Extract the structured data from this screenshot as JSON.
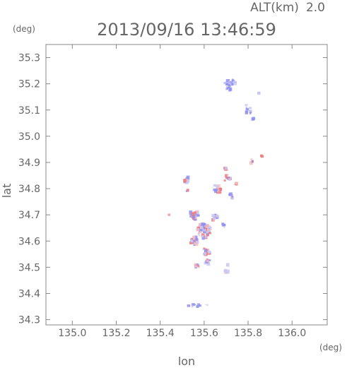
{
  "header": {
    "altitude_label": "ALT(km)",
    "altitude_value": "2.0",
    "timestamp": "2013/09/16 13:46:59"
  },
  "axis_units": {
    "y": "(deg)",
    "x": "(deg)"
  },
  "chart_data": {
    "type": "scatter",
    "title": "2013/09/16 13:46:59",
    "xlabel": "lon",
    "ylabel": "lat",
    "xlim": [
      134.88,
      136.16
    ],
    "ylim": [
      34.28,
      35.35
    ],
    "xticks": [
      135.0,
      135.2,
      135.4,
      135.6,
      135.8,
      136.0
    ],
    "yticks": [
      34.3,
      34.4,
      34.5,
      34.6,
      34.7,
      34.8,
      34.9,
      35.0,
      35.1,
      35.2,
      35.3
    ],
    "grid": false,
    "colors": {
      "negative": "#8f8ff0",
      "positive": "#f07a7a",
      "weak_negative": "#c8c8f5",
      "weak_positive": "#f5c0c0"
    },
    "clusters": [
      {
        "lon": 135.718,
        "lat": 35.205,
        "w": 0.06,
        "h": 0.025,
        "n": 26,
        "pos": 0.0
      },
      {
        "lon": 135.71,
        "lat": 35.18,
        "w": 0.03,
        "h": 0.012,
        "n": 8,
        "pos": 0.0
      },
      {
        "lon": 135.8,
        "lat": 35.1,
        "w": 0.03,
        "h": 0.045,
        "n": 14,
        "pos": 0.05
      },
      {
        "lon": 135.82,
        "lat": 35.065,
        "w": 0.012,
        "h": 0.012,
        "n": 3,
        "pos": 0.0
      },
      {
        "lon": 135.845,
        "lat": 35.165,
        "w": 0.01,
        "h": 0.006,
        "n": 2,
        "pos": 0.0
      },
      {
        "lon": 135.815,
        "lat": 34.905,
        "w": 0.018,
        "h": 0.015,
        "n": 6,
        "pos": 0.6
      },
      {
        "lon": 135.862,
        "lat": 34.925,
        "w": 0.01,
        "h": 0.012,
        "n": 3,
        "pos": 0.7
      },
      {
        "lon": 135.52,
        "lat": 34.835,
        "w": 0.025,
        "h": 0.02,
        "n": 10,
        "pos": 0.5
      },
      {
        "lon": 135.525,
        "lat": 34.795,
        "w": 0.015,
        "h": 0.015,
        "n": 5,
        "pos": 0.4
      },
      {
        "lon": 135.7,
        "lat": 34.875,
        "w": 0.012,
        "h": 0.01,
        "n": 3,
        "pos": 0.3
      },
      {
        "lon": 135.705,
        "lat": 34.84,
        "w": 0.035,
        "h": 0.025,
        "n": 14,
        "pos": 0.6
      },
      {
        "lon": 135.66,
        "lat": 34.8,
        "w": 0.035,
        "h": 0.03,
        "n": 18,
        "pos": 0.55
      },
      {
        "lon": 135.72,
        "lat": 34.77,
        "w": 0.025,
        "h": 0.02,
        "n": 8,
        "pos": 0.5
      },
      {
        "lon": 135.745,
        "lat": 34.82,
        "w": 0.015,
        "h": 0.01,
        "n": 4,
        "pos": 0.7
      },
      {
        "lon": 135.555,
        "lat": 34.7,
        "w": 0.045,
        "h": 0.04,
        "n": 40,
        "pos": 0.5
      },
      {
        "lon": 135.6,
        "lat": 34.64,
        "w": 0.06,
        "h": 0.06,
        "n": 80,
        "pos": 0.45
      },
      {
        "lon": 135.555,
        "lat": 34.6,
        "w": 0.035,
        "h": 0.04,
        "n": 35,
        "pos": 0.45
      },
      {
        "lon": 135.65,
        "lat": 34.69,
        "w": 0.025,
        "h": 0.03,
        "n": 16,
        "pos": 0.3
      },
      {
        "lon": 135.69,
        "lat": 34.66,
        "w": 0.015,
        "h": 0.02,
        "n": 6,
        "pos": 0.2
      },
      {
        "lon": 135.61,
        "lat": 34.56,
        "w": 0.04,
        "h": 0.03,
        "n": 22,
        "pos": 0.45
      },
      {
        "lon": 135.56,
        "lat": 34.505,
        "w": 0.03,
        "h": 0.012,
        "n": 8,
        "pos": 0.7
      },
      {
        "lon": 135.615,
        "lat": 34.52,
        "w": 0.025,
        "h": 0.018,
        "n": 10,
        "pos": 0.45
      },
      {
        "lon": 135.7,
        "lat": 34.485,
        "w": 0.02,
        "h": 0.012,
        "n": 5,
        "pos": 0.6
      },
      {
        "lon": 135.705,
        "lat": 34.51,
        "w": 0.01,
        "h": 0.008,
        "n": 2,
        "pos": 0.5
      },
      {
        "lon": 135.44,
        "lat": 34.7,
        "w": 0.006,
        "h": 0.006,
        "n": 2,
        "pos": 0.8
      },
      {
        "lon": 135.58,
        "lat": 34.355,
        "w": 0.12,
        "h": 0.012,
        "n": 10,
        "pos": 0.0
      }
    ]
  }
}
